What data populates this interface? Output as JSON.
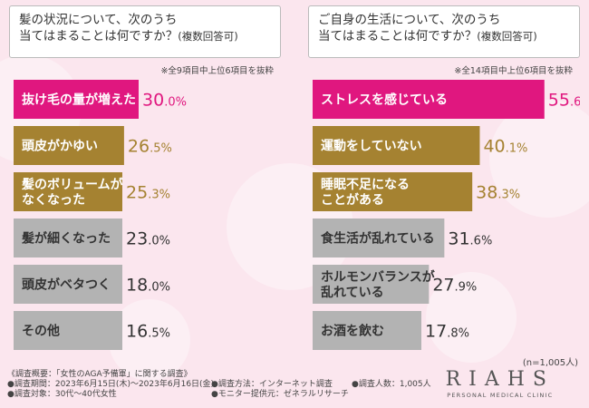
{
  "colors": {
    "top1": "#e0177f",
    "top23": "#a58231",
    "rest": "#b3b3b3",
    "bg": "#fbe6ee"
  },
  "left": {
    "question_line1": "髪の状況について、次のうち",
    "question_line2": "当てはまることは何ですか？",
    "question_suffix": "(複数回答可)",
    "note": "※全9項目中上位6項目を抜粋"
  },
  "right": {
    "question_line1": "ご自身の生活について、次のうち",
    "question_line2": "当てはまることは何ですか？",
    "question_suffix": "(複数回答可)",
    "note": "※全14項目中上位6項目を抜粋"
  },
  "respondents": "(n=1,005人)",
  "chart_data": [
    {
      "type": "bar",
      "orientation": "horizontal",
      "categories": [
        "抜け毛の量が増えた",
        "頭皮がかゆい",
        "髪のボリュームがなくなった",
        "髪が細くなった",
        "頭皮がベタつく",
        "その他"
      ],
      "label_lines": [
        [
          "抜け毛の量が増えた"
        ],
        [
          "頭皮がかゆい"
        ],
        [
          "髪のボリュームが",
          "なくなった"
        ],
        [
          "髪が細くなった"
        ],
        [
          "頭皮がベタつく"
        ],
        [
          "その他"
        ]
      ],
      "values": [
        30.0,
        26.5,
        25.3,
        23.0,
        18.0,
        16.5
      ],
      "unit": "%",
      "xlim": [
        0,
        100
      ]
    },
    {
      "type": "bar",
      "orientation": "horizontal",
      "categories": [
        "ストレスを感じている",
        "運動をしていない",
        "睡眠不足になることがある",
        "食生活が乱れている",
        "ホルモンバランスが乱れている",
        "お酒を飲む"
      ],
      "label_lines": [
        [
          "ストレスを感じている"
        ],
        [
          "運動をしていない"
        ],
        [
          "睡眠不足になる",
          "ことがある"
        ],
        [
          "食生活が乱れている"
        ],
        [
          "ホルモンバランスが",
          "乱れている"
        ],
        [
          "お酒を飲む"
        ]
      ],
      "values": [
        55.6,
        40.1,
        38.3,
        31.6,
        27.9,
        17.8
      ],
      "unit": "%",
      "xlim": [
        0,
        100
      ]
    }
  ],
  "footer": {
    "col1": [
      "《調査概要：「女性のAGA予備軍」に関する調査》",
      "●調査期間：2023年6月15日(木)～2023年6月16日(金)",
      "●調査対象：30代～40代女性"
    ],
    "col2": [
      "●調査方法：インターネット調査",
      "●モニター提供元：ゼネラルリサーチ"
    ],
    "col3": [
      "●調査人数：1,005人"
    ]
  },
  "logo": {
    "word": "RIAHS",
    "sub": "PERSONAL MEDICAL CLINIC"
  }
}
